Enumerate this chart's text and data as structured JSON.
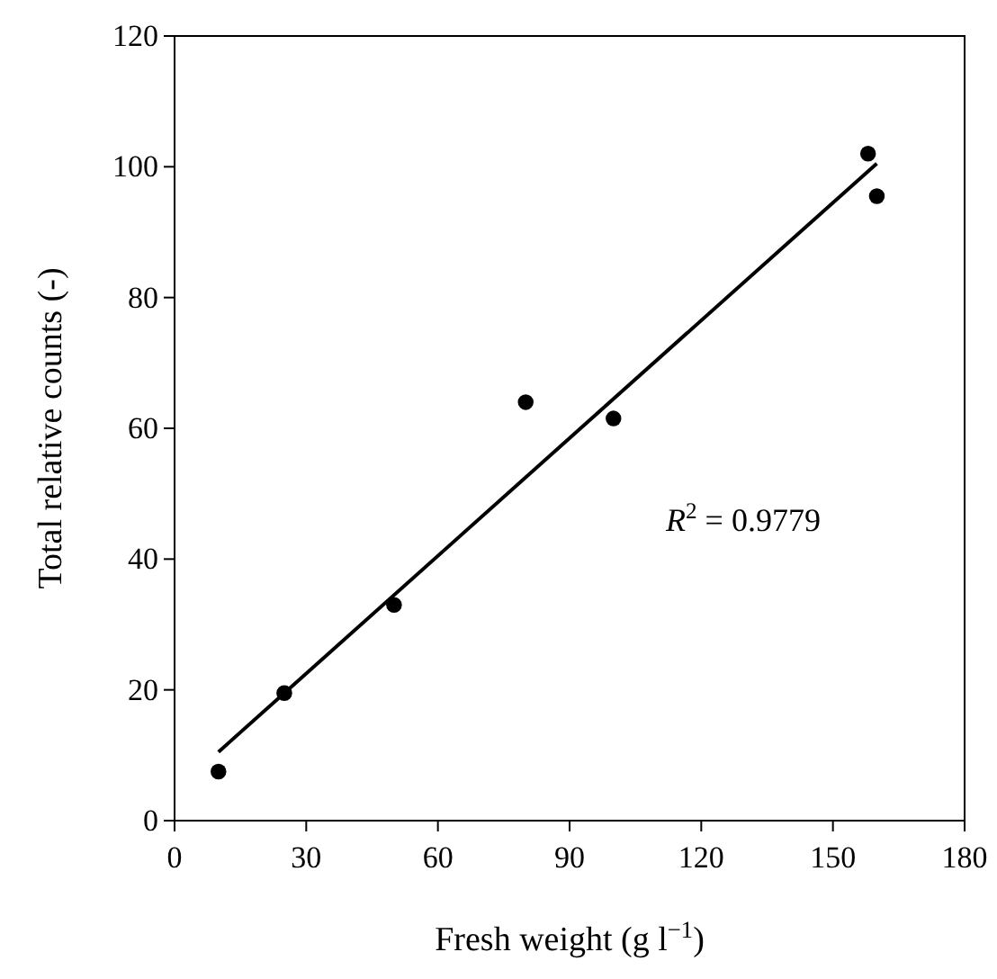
{
  "chart_data": {
    "type": "scatter",
    "xlabel": "Fresh weight (g l$^{−1}$)",
    "ylabel": "Total relative counts (-)",
    "xlim": [
      0,
      180
    ],
    "xticks": [
      0,
      30,
      60,
      90,
      120,
      150,
      180
    ],
    "ylim": [
      0,
      120
    ],
    "yticks": [
      0,
      20,
      40,
      60,
      80,
      100,
      120
    ],
    "grid": false,
    "series": [
      {
        "color": "#000000",
        "marker": "circle",
        "x": [
          10,
          25,
          50,
          80,
          100,
          158,
          160
        ],
        "values": [
          7.5,
          19.5,
          33,
          64,
          61.5,
          102,
          95.5
        ]
      },
      {
        "type": "line",
        "marker": "none",
        "color": "#000000",
        "x": [
          10,
          160
        ],
        "values": [
          10.5,
          100.5
        ]
      }
    ],
    "annotations": [
      "R$^{2}$ = 0.9779"
    ]
  }
}
